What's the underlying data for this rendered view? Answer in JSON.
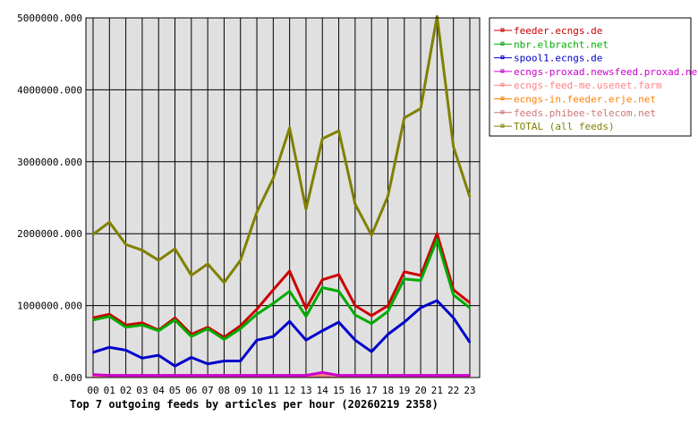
{
  "chart_data": {
    "type": "line",
    "title": "Top 7 outgoing feeds by articles per hour (20260219 2358)",
    "xlabel": "",
    "ylabel": "",
    "ylim": [
      0,
      5000000
    ],
    "yticks": [
      "0.000",
      "1000000.000",
      "2000000.000",
      "3000000.000",
      "4000000.000",
      "5000000.000"
    ],
    "grid": true,
    "legend_position": "right",
    "categories": [
      "00",
      "01",
      "02",
      "03",
      "04",
      "05",
      "06",
      "07",
      "08",
      "09",
      "10",
      "11",
      "12",
      "13",
      "14",
      "15",
      "16",
      "17",
      "18",
      "19",
      "20",
      "21",
      "22",
      "23"
    ],
    "series": [
      {
        "name": "feeder.ecngs.de",
        "color": "#cc0000",
        "values": [
          830000,
          880000,
          730000,
          760000,
          660000,
          830000,
          600000,
          700000,
          560000,
          720000,
          950000,
          1220000,
          1480000,
          960000,
          1360000,
          1430000,
          1000000,
          860000,
          1000000,
          1470000,
          1420000,
          2000000,
          1220000,
          1040000
        ]
      },
      {
        "name": "nbr.elbracht.net",
        "color": "#00aa00",
        "values": [
          800000,
          850000,
          700000,
          730000,
          650000,
          800000,
          570000,
          680000,
          530000,
          680000,
          880000,
          1030000,
          1200000,
          850000,
          1250000,
          1200000,
          870000,
          750000,
          920000,
          1370000,
          1350000,
          1920000,
          1150000,
          970000
        ]
      },
      {
        "name": "spool1.ecngs.de",
        "color": "#0000cc",
        "values": [
          350000,
          420000,
          380000,
          270000,
          310000,
          160000,
          280000,
          190000,
          230000,
          230000,
          520000,
          570000,
          780000,
          520000,
          650000,
          770000,
          520000,
          360000,
          600000,
          770000,
          970000,
          1070000,
          830000,
          490000
        ]
      },
      {
        "name": "ecngs-proxad.newsfeed.proxad.net",
        "color": "#cc00cc",
        "values": [
          40000,
          30000,
          30000,
          30000,
          30000,
          30000,
          30000,
          30000,
          30000,
          30000,
          30000,
          30000,
          30000,
          30000,
          70000,
          30000,
          30000,
          30000,
          30000,
          30000,
          30000,
          30000,
          30000,
          30000
        ]
      },
      {
        "name": "ecngs-feed-me.usenet.farm",
        "color": "#ff8080",
        "values": [
          25000,
          25000,
          25000,
          25000,
          25000,
          25000,
          25000,
          25000,
          25000,
          25000,
          25000,
          25000,
          25000,
          25000,
          40000,
          25000,
          25000,
          25000,
          25000,
          25000,
          25000,
          25000,
          25000,
          25000
        ]
      },
      {
        "name": "ecngs-in.feeder.erje.net",
        "color": "#ff8000",
        "values": [
          20000,
          20000,
          20000,
          20000,
          20000,
          20000,
          20000,
          20000,
          20000,
          20000,
          20000,
          20000,
          20000,
          20000,
          45000,
          20000,
          20000,
          20000,
          20000,
          20000,
          20000,
          20000,
          20000,
          20000
        ]
      },
      {
        "name": "feeds.phibee-telecom.net",
        "color": "#cc7777",
        "values": [
          22000,
          22000,
          22000,
          22000,
          22000,
          22000,
          22000,
          22000,
          22000,
          22000,
          22000,
          22000,
          22000,
          22000,
          22000,
          22000,
          22000,
          22000,
          22000,
          22000,
          22000,
          22000,
          22000,
          22000
        ]
      },
      {
        "name": "TOTAL (all feeds)",
        "color": "#808000",
        "values": [
          1990000,
          2160000,
          1850000,
          1770000,
          1630000,
          1790000,
          1420000,
          1580000,
          1320000,
          1630000,
          2300000,
          2770000,
          3470000,
          2340000,
          3320000,
          3430000,
          2410000,
          1980000,
          2520000,
          3610000,
          3740000,
          5020000,
          3210000,
          2510000
        ]
      }
    ]
  }
}
